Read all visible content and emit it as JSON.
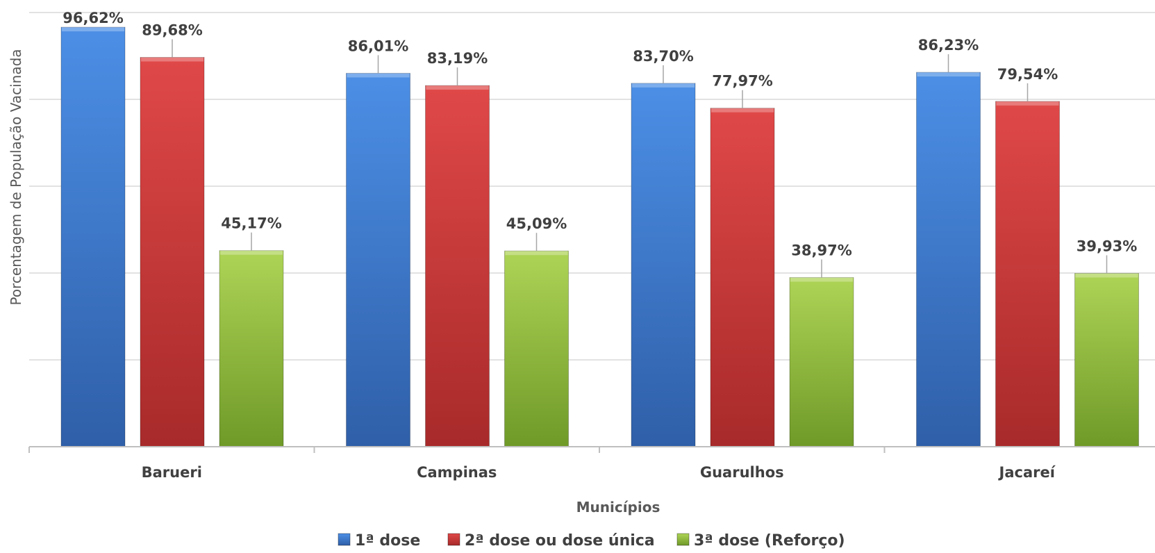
{
  "chart_data": {
    "type": "bar",
    "categories": [
      "Barueri",
      "Campinas",
      "Guarulhos",
      "Jacareí"
    ],
    "series": [
      {
        "name": "1ª dose",
        "values": [
          96.62,
          86.01,
          83.7,
          86.23
        ],
        "labels": [
          "96,62%",
          "86,01%",
          "83,70%",
          "86,23%"
        ],
        "color": "#3B7DD8"
      },
      {
        "name": "2ª dose ou dose única",
        "values": [
          89.68,
          83.19,
          77.97,
          79.54
        ],
        "labels": [
          "89,68%",
          "83,19%",
          "77,97%",
          "79,54%"
        ],
        "color": "#D63B3B"
      },
      {
        "name": "3ª dose (Reforço)",
        "values": [
          45.17,
          45.09,
          38.97,
          39.93
        ],
        "labels": [
          "45,17%",
          "45,09%",
          "38,97%",
          "39,93%"
        ],
        "color": "#9CC43E"
      }
    ],
    "xlabel": "Municípios",
    "ylabel": "Porcentagem de População Vacinada",
    "ylim": [
      0,
      100
    ],
    "grid": true,
    "legend": "bottom"
  }
}
